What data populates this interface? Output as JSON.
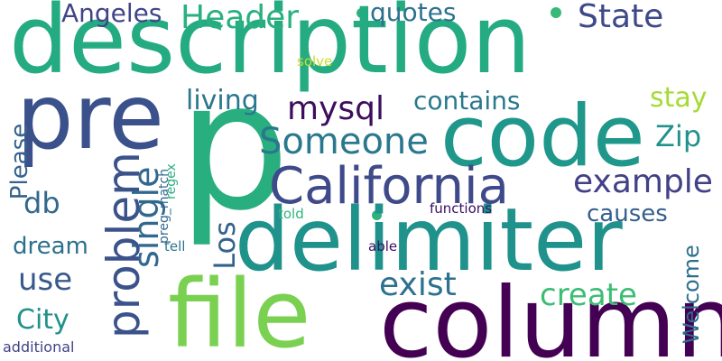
{
  "words": [
    {
      "text": "description",
      "color": "#25ab82"
    },
    {
      "text": "p",
      "color": "#29af7f"
    },
    {
      "text": "pre",
      "color": "#3b518b"
    },
    {
      "text": "code",
      "color": "#1f988b"
    },
    {
      "text": "delimiter",
      "color": "#20928c"
    },
    {
      "text": "file",
      "color": "#7ad151"
    },
    {
      "text": "column",
      "color": "#440154"
    },
    {
      "text": "California",
      "color": "#3e4a89"
    },
    {
      "text": "problem",
      "color": "#3b528b"
    },
    {
      "text": "Someone",
      "color": "#2a788e"
    },
    {
      "text": "Header",
      "color": "#2ab07f"
    },
    {
      "text": "State",
      "color": "#3e4989"
    },
    {
      "text": "Angeles",
      "color": "#414487"
    },
    {
      "text": "quotes",
      "color": "#2c728e"
    },
    {
      "text": "mysql",
      "color": "#3d0e5e"
    },
    {
      "text": "living",
      "color": "#2a768e"
    },
    {
      "text": "contains",
      "color": "#2a788e"
    },
    {
      "text": "stay",
      "color": "#a5db36"
    },
    {
      "text": "Zip",
      "color": "#21918c"
    },
    {
      "text": "example",
      "color": "#424086"
    },
    {
      "text": "causes",
      "color": "#355f8d"
    },
    {
      "text": "single",
      "color": "#31688e"
    },
    {
      "text": "Los",
      "color": "#33638d"
    },
    {
      "text": "db",
      "color": "#31688e"
    },
    {
      "text": "Please",
      "color": "#34618d"
    },
    {
      "text": "dream",
      "color": "#2d708e"
    },
    {
      "text": "use",
      "color": "#38598c"
    },
    {
      "text": "City",
      "color": "#21918c"
    },
    {
      "text": "exist",
      "color": "#2d718e"
    },
    {
      "text": "create",
      "color": "#3dbc74"
    },
    {
      "text": "Welcome",
      "color": "#2e6f8e"
    },
    {
      "text": "additional",
      "color": "#414487"
    },
    {
      "text": "preg_match",
      "color": "#31688e"
    },
    {
      "text": "regex",
      "color": "#26ad81"
    },
    {
      "text": "told",
      "color": "#2fb47c"
    },
    {
      "text": "functions",
      "color": "#3a0f63"
    },
    {
      "text": "tell",
      "color": "#2b748e"
    },
    {
      "text": "able",
      "color": "#3e0f63"
    },
    {
      "text": "solve",
      "color": "#c6df2a"
    }
  ],
  "dot_colors": [
    "#2db27d",
    "#38b977",
    "#2db27d"
  ]
}
